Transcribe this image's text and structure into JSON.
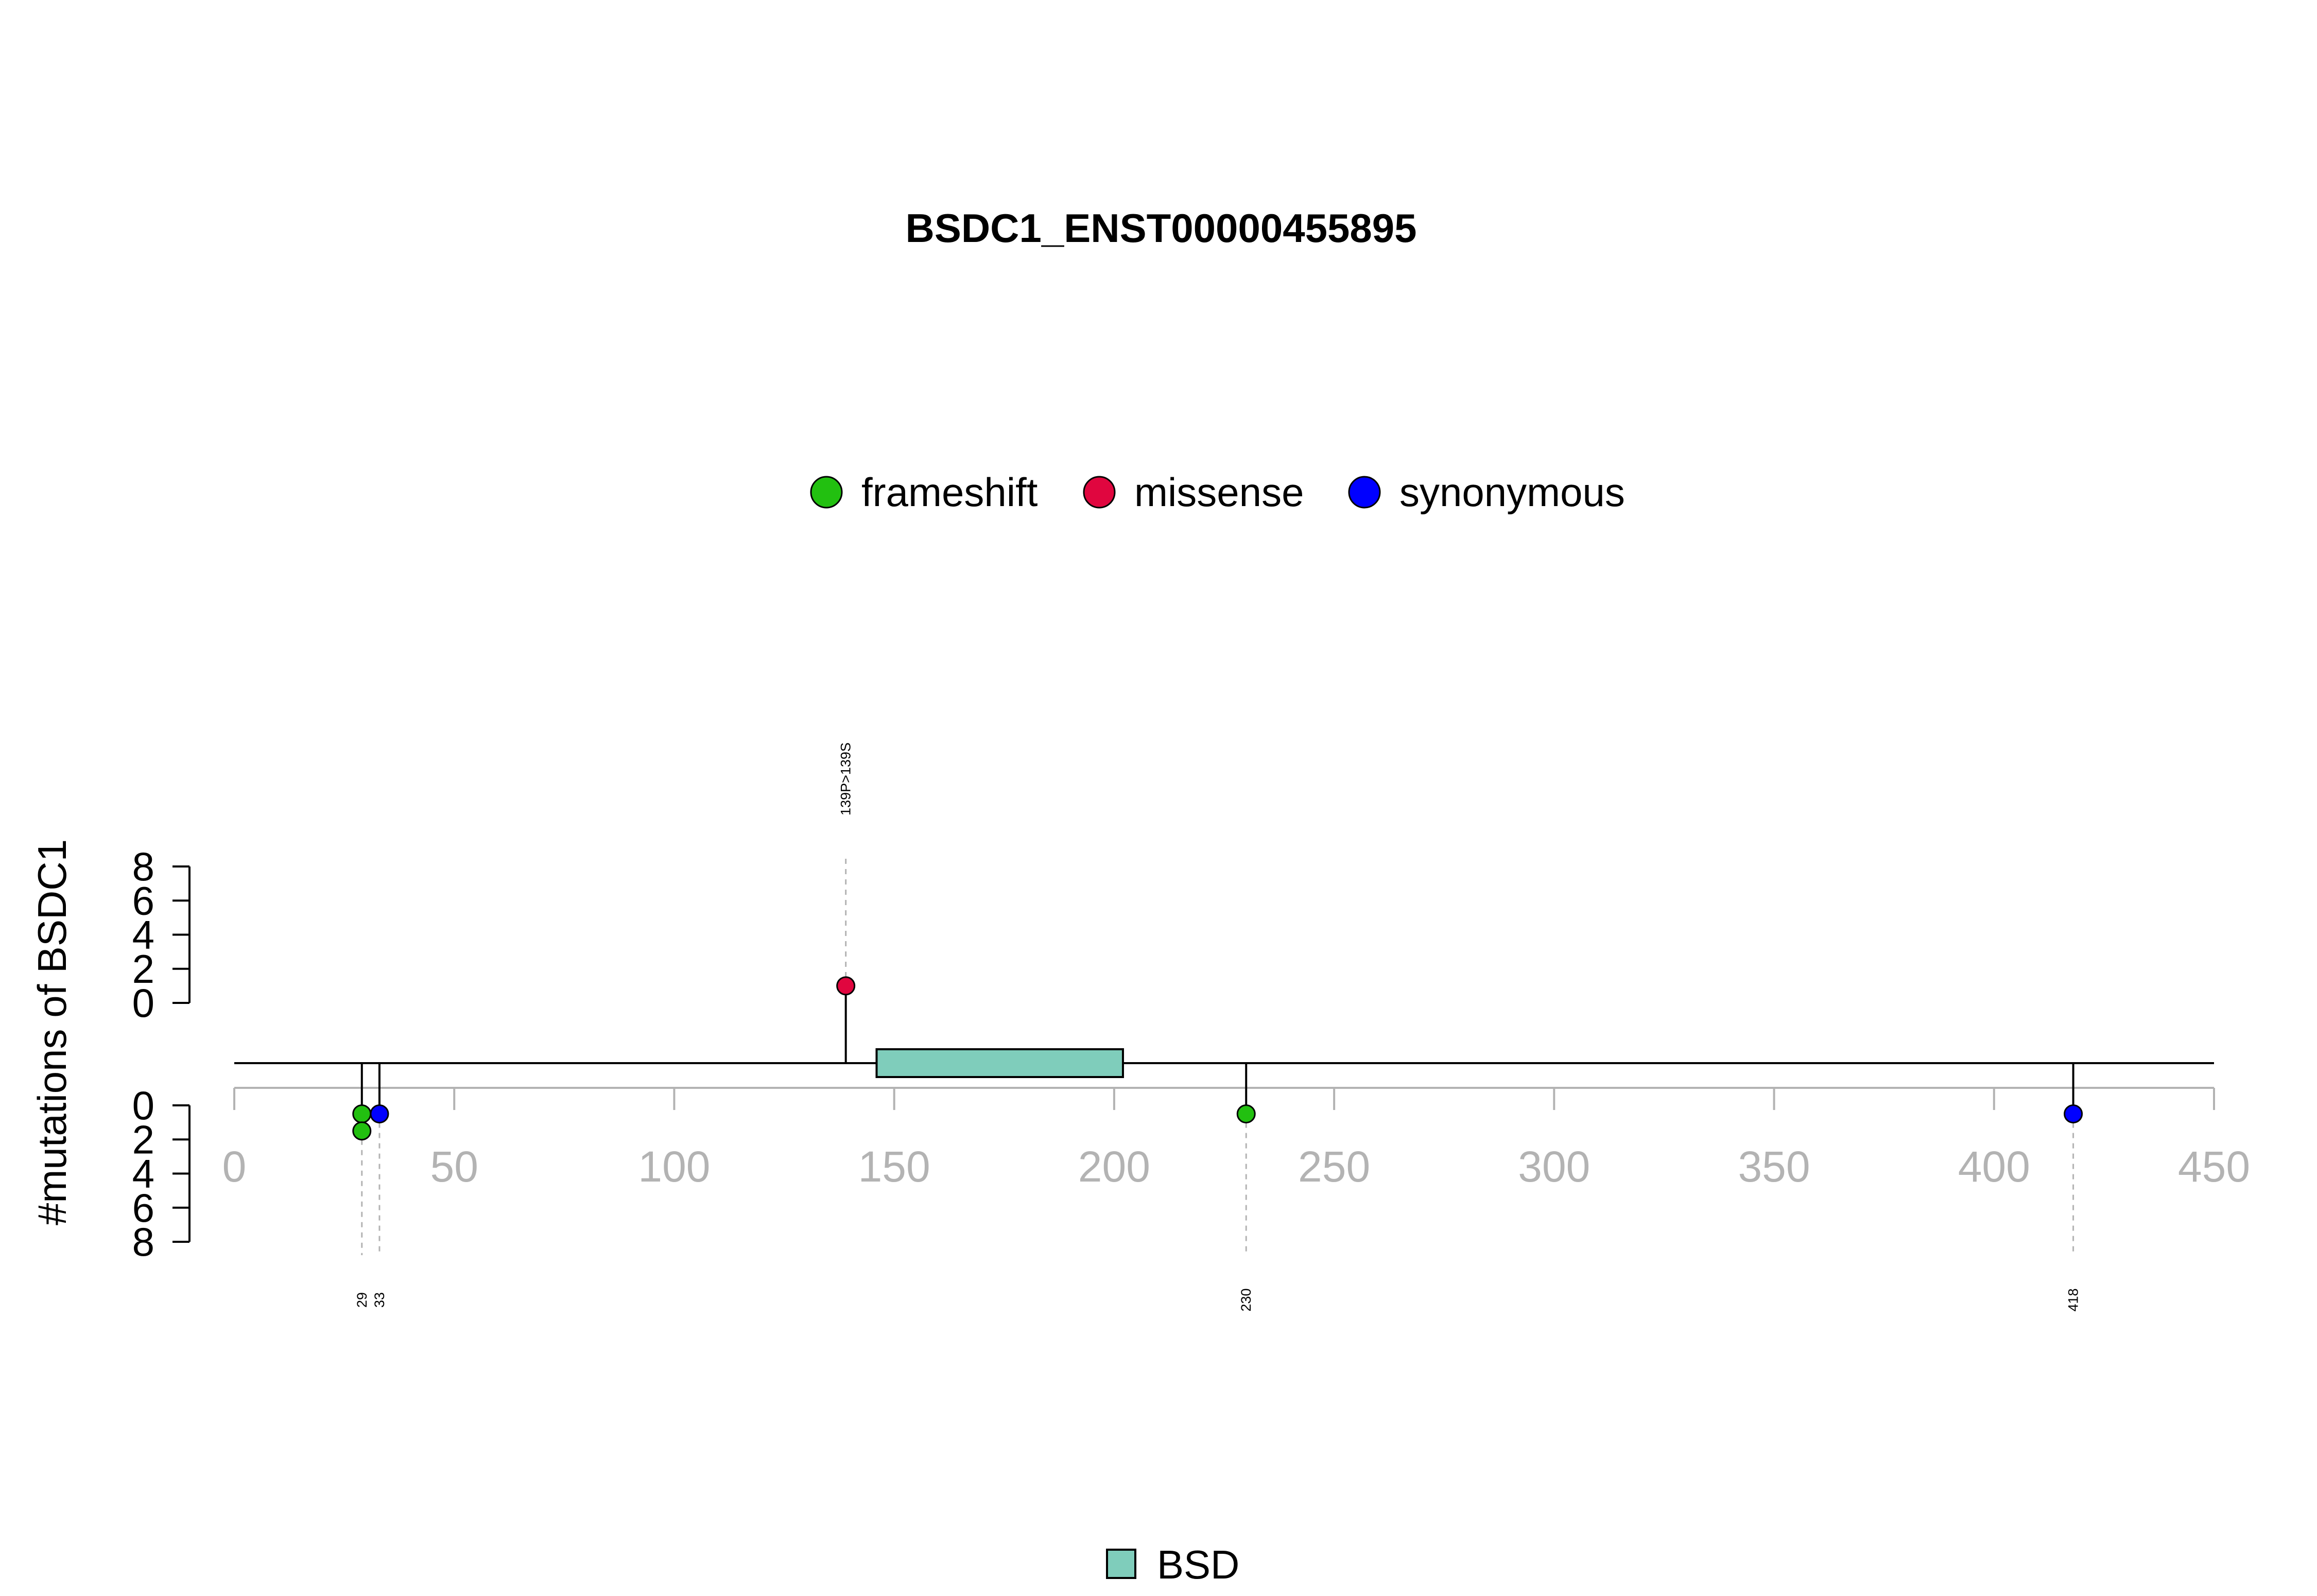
{
  "chart_data": {
    "type": "lollipop",
    "title": "BSDC1_ENST00000455895",
    "ylabel": "#mutations of BSDC1",
    "xlim": [
      0,
      450
    ],
    "x_ticks": [
      0,
      50,
      100,
      150,
      200,
      250,
      300,
      350,
      400,
      450
    ],
    "y_ticks_top": [
      0,
      2,
      4,
      6,
      8
    ],
    "y_ticks_bottom": [
      0,
      2,
      4,
      6,
      8
    ],
    "protein_length": 450,
    "legend_mutations": [
      {
        "name": "frameshift",
        "color": "#22c010"
      },
      {
        "name": "missense",
        "color": "#e0063f"
      },
      {
        "name": "synonymous",
        "color": "#0000ff"
      }
    ],
    "legend_domains": [
      {
        "name": "BSD",
        "color": "#7fcdbb"
      }
    ],
    "domains": [
      {
        "name": "BSD",
        "start": 146,
        "end": 202,
        "color": "#7fcdbb"
      }
    ],
    "mutations_top": [
      {
        "position": 139,
        "count": 1,
        "type": "missense",
        "label": "139P>139S"
      }
    ],
    "mutations_bottom": [
      {
        "position": 29,
        "count": 2,
        "types": [
          "frameshift",
          "frameshift"
        ],
        "label": "29"
      },
      {
        "position": 33,
        "count": 1,
        "types": [
          "synonymous"
        ],
        "label": "33"
      },
      {
        "position": 230,
        "count": 1,
        "types": [
          "frameshift"
        ],
        "label": "230"
      },
      {
        "position": 418,
        "count": 1,
        "types": [
          "synonymous"
        ],
        "label": "418"
      }
    ]
  }
}
